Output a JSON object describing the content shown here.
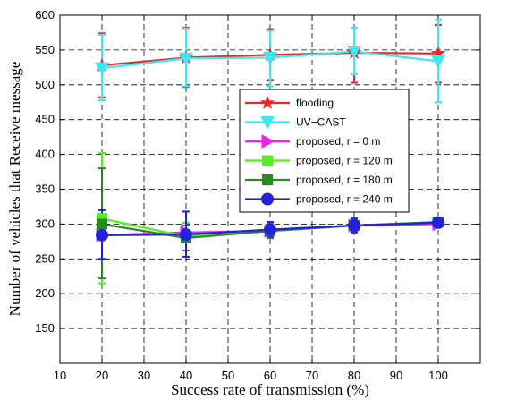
{
  "chart_data": {
    "type": "line",
    "xlabel": "Success rate of transmission (%)",
    "ylabel": "Number of vehicles that Receive message",
    "xlim": [
      10,
      110
    ],
    "ylim": [
      100,
      600
    ],
    "xticks": [
      10,
      20,
      30,
      40,
      50,
      60,
      70,
      80,
      90,
      100
    ],
    "yticks": [
      150,
      200,
      250,
      300,
      350,
      400,
      450,
      500,
      550,
      600
    ],
    "grid": true,
    "legend_position": "center-right",
    "x": [
      20,
      40,
      60,
      80,
      100
    ],
    "series": [
      {
        "name": "flooding",
        "color": "#e8292b",
        "marker": "star",
        "values": [
          528,
          539,
          543,
          546,
          545
        ],
        "error_low": [
          482,
          497,
          507,
          503,
          503
        ],
        "error_high": [
          574,
          582,
          580,
          582,
          586
        ]
      },
      {
        "name": "UV−CAST",
        "color": "#3ee8f0",
        "marker": "triangle-down",
        "values": [
          524,
          538,
          539,
          548,
          534
        ],
        "error_low": [
          478,
          498,
          498,
          515,
          475
        ],
        "error_high": [
          572,
          581,
          578,
          582,
          594
        ]
      },
      {
        "name": "proposed, r = 0 m",
        "color": "#ee22ee",
        "marker": "triangle-right",
        "values": [
          284,
          288,
          290,
          298,
          300
        ],
        "error_low": [
          250,
          275,
          280,
          288,
          295
        ],
        "error_high": [
          320,
          302,
          300,
          308,
          306
        ]
      },
      {
        "name": "proposed, r = 120 m",
        "color": "#55ee22",
        "marker": "square",
        "values": [
          308,
          282,
          291,
          298,
          303
        ],
        "error_low": [
          215,
          262,
          280,
          290,
          298
        ],
        "error_high": [
          402,
          302,
          302,
          306,
          308
        ]
      },
      {
        "name": "proposed, r = 180 m",
        "color": "#2a8a22",
        "marker": "square",
        "values": [
          300,
          280,
          290,
          298,
          303
        ],
        "error_low": [
          222,
          262,
          280,
          290,
          298
        ],
        "error_high": [
          380,
          298,
          300,
          306,
          308
        ]
      },
      {
        "name": "proposed, r = 240 m",
        "color": "#2222dd",
        "marker": "circle",
        "values": [
          284,
          285,
          292,
          298,
          302
        ],
        "error_low": [
          250,
          253,
          282,
          288,
          296
        ],
        "error_high": [
          320,
          318,
          303,
          308,
          308
        ]
      }
    ]
  }
}
